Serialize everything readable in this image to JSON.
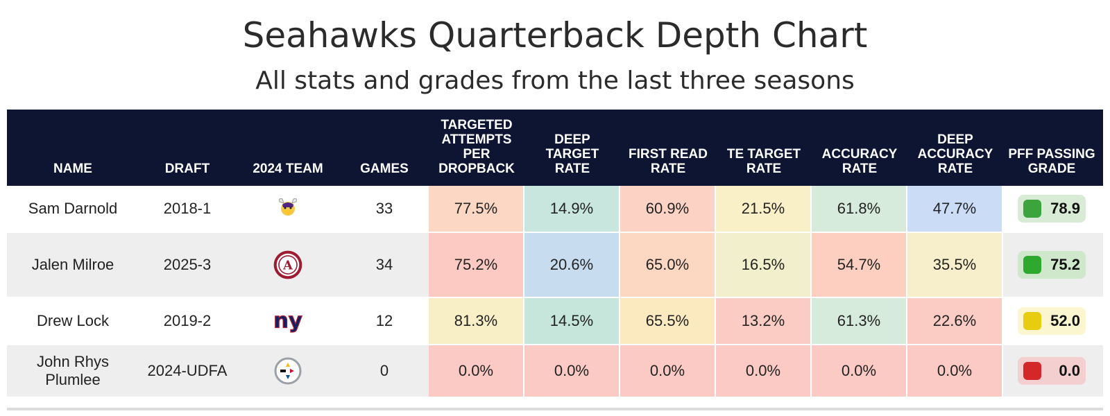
{
  "title": "Seahawks Quarterback Depth Chart",
  "subtitle": "All stats and grades from the last three seasons",
  "headers": {
    "name": "NAME",
    "draft": "DRAFT",
    "team": "2024 TEAM",
    "games": "GAMES",
    "targeted": [
      "TARGETED",
      "ATTEMPTS",
      "PER",
      "DROPBACK"
    ],
    "deep_target": [
      "DEEP",
      "TARGET",
      "RATE"
    ],
    "first_read": [
      "FIRST READ",
      "RATE"
    ],
    "te_target": [
      "TE TARGET",
      "RATE"
    ],
    "accuracy": [
      "ACCURACY",
      "RATE"
    ],
    "deep_accuracy": [
      "DEEP",
      "ACCURACY",
      "RATE"
    ],
    "pff": [
      "PFF PASSING",
      "GRADE"
    ]
  },
  "rows": [
    {
      "name_lines": [
        "Sam Darnold"
      ],
      "draft": "2018-1",
      "team_icon": "vikings-logo",
      "games": "33",
      "stats": [
        "77.5%",
        "14.9%",
        "60.9%",
        "21.5%",
        "61.8%",
        "47.7%"
      ],
      "stat_colors": [
        "#fbd7c4",
        "#c8e6de",
        "#fbd2c4",
        "#faf0c8",
        "#d6ebdc",
        "#cadcf6"
      ],
      "grade": "78.9",
      "grade_color": "#3ca43c",
      "grade_bg": "#d7ebd5"
    },
    {
      "name_lines": [
        "Jalen Milroe"
      ],
      "draft": "2025-3",
      "team_icon": "alabama-logo",
      "games": "34",
      "stats": [
        "75.2%",
        "20.6%",
        "65.0%",
        "16.5%",
        "54.7%",
        "35.5%"
      ],
      "stat_colors": [
        "#fccac2",
        "#c8dcef",
        "#fcd8c2",
        "#f2efcc",
        "#fccfc0",
        "#f7efcc"
      ],
      "grade": "75.2",
      "grade_color": "#2ea82e",
      "grade_bg": "#cfe8cc"
    },
    {
      "name_lines": [
        "Drew Lock"
      ],
      "draft": "2019-2",
      "team_icon": "giants-logo",
      "games": "12",
      "stats": [
        "81.3%",
        "14.5%",
        "65.5%",
        "13.2%",
        "61.3%",
        "22.6%"
      ],
      "stat_colors": [
        "#f8efc6",
        "#c6e6dc",
        "#fbe9c0",
        "#fbccc4",
        "#d6ebdc",
        "#fbccc4"
      ],
      "grade": "52.0",
      "grade_color": "#e8cc10",
      "grade_bg": "#fbf6d0"
    },
    {
      "name_lines": [
        "John Rhys",
        "Plumlee"
      ],
      "draft": "2024-UDFA",
      "team_icon": "steelers-logo",
      "games": "0",
      "stats": [
        "0.0%",
        "0.0%",
        "0.0%",
        "0.0%",
        "0.0%",
        "0.0%"
      ],
      "stat_colors": [
        "#fccac4",
        "#fccac4",
        "#fccac4",
        "#fccac4",
        "#fccac4",
        "#fccac4"
      ],
      "grade": "0.0",
      "grade_color": "#d42828",
      "grade_bg": "#f3cfcf"
    }
  ]
}
